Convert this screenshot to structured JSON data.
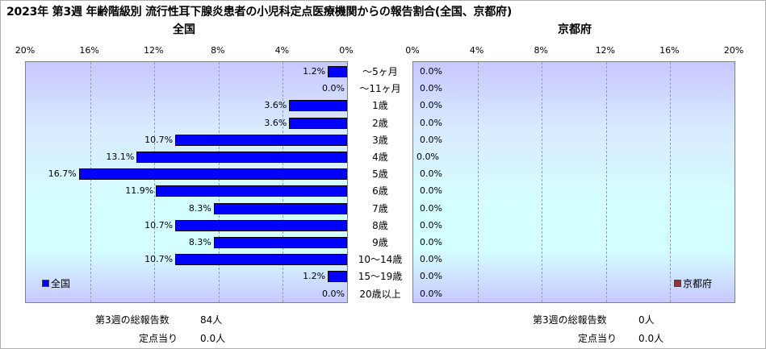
{
  "title": "2023年 第3週 年齢階級別 流行性耳下腺炎患者の小児科定点医療機関からの報告割合(全国、京都府)",
  "chart_data": [
    {
      "type": "bar",
      "title": "全国",
      "orientation": "horizontal",
      "x_direction": "reversed",
      "xlim": [
        0,
        20
      ],
      "x_ticks": [
        "20%",
        "16%",
        "12%",
        "8%",
        "4%",
        "0%"
      ],
      "categories": [
        "～5ヶ月",
        "～11ヶ月",
        "1歳",
        "2歳",
        "3歳",
        "4歳",
        "5歳",
        "6歳",
        "7歳",
        "8歳",
        "9歳",
        "10～14歳",
        "15～19歳",
        "20歳以上"
      ],
      "series": [
        {
          "name": "全国",
          "color": "#0000ff",
          "values": [
            1.2,
            0.0,
            3.6,
            3.6,
            10.7,
            13.1,
            16.7,
            11.9,
            8.3,
            10.7,
            8.3,
            10.7,
            1.2,
            0.0
          ],
          "labels": [
            "1.2%",
            "0.0%",
            "3.6%",
            "3.6%",
            "10.7%",
            "13.1%",
            "16.7%",
            "11.9%",
            "8.3%",
            "10.7%",
            "8.3%",
            "10.7%",
            "1.2%",
            "0.0%"
          ]
        }
      ],
      "legend": "bottom-left",
      "grid": true
    },
    {
      "type": "bar",
      "title": "京都府",
      "orientation": "horizontal",
      "xlim": [
        0,
        20
      ],
      "x_ticks": [
        "0%",
        "4%",
        "8%",
        "12%",
        "16%",
        "20%"
      ],
      "categories": [
        "～5ヶ月",
        "～11ヶ月",
        "1歳",
        "2歳",
        "3歳",
        "4歳",
        "5歳",
        "6歳",
        "7歳",
        "8歳",
        "9歳",
        "10～14歳",
        "15～19歳",
        "20歳以上"
      ],
      "series": [
        {
          "name": "京都府",
          "color": "#993333",
          "values": [
            0,
            0,
            0,
            0,
            0,
            0,
            0,
            0,
            0,
            0,
            0,
            0,
            0,
            0
          ],
          "labels": [
            "0.0%",
            "0.0%",
            "0.0%",
            "0.0%",
            "0.0%",
            "0.0%",
            "0.0%",
            "0.0%",
            "0.0%",
            "0.0%",
            "0.0%",
            "0.0%",
            "0.0%",
            "0.0%"
          ]
        }
      ],
      "legend": "bottom-right",
      "grid": true
    }
  ],
  "footer": {
    "national": {
      "reports_label": "第3週の総報告数",
      "reports_value": "84人",
      "per_site_label": "定点当り",
      "per_site_value": "0.0人"
    },
    "kyoto": {
      "reports_label": "第3週の総報告数",
      "reports_value": "0人",
      "per_site_label": "定点当り",
      "per_site_value": "0.0人"
    }
  }
}
